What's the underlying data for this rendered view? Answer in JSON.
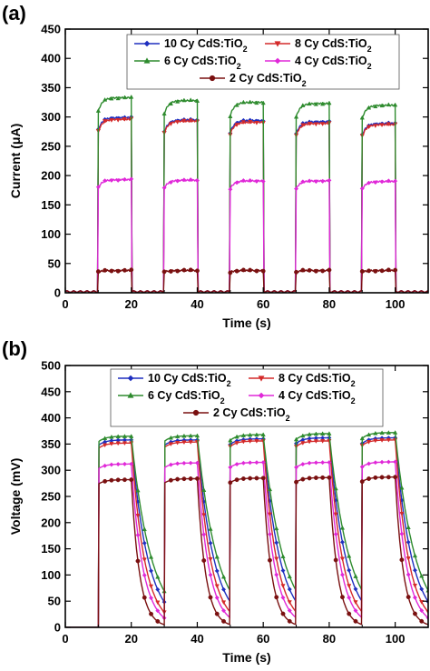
{
  "chart_data": [
    {
      "type": "line",
      "panel_label": "(a)",
      "xlabel": "Time (s)",
      "ylabel": "Current (μA)",
      "xlim": [
        0,
        110
      ],
      "ylim": [
        0,
        450
      ],
      "xticks": [
        0,
        20,
        40,
        60,
        80,
        100
      ],
      "yticks": [
        0,
        50,
        100,
        150,
        200,
        250,
        300,
        350,
        400,
        450
      ],
      "light_on_intervals": [
        [
          10,
          20
        ],
        [
          30,
          40
        ],
        [
          50,
          60
        ],
        [
          70,
          80
        ],
        [
          90,
          100
        ]
      ],
      "legend_position": "top-center",
      "series": [
        {
          "name_main": "10 Cy CdS:TiO",
          "name_sub": "2",
          "color": "#1f2fbf",
          "marker": "diamond",
          "plateau": [
            299,
            295,
            294,
            292,
            289
          ]
        },
        {
          "name_main": "8 Cy CdS:TiO",
          "name_sub": "2",
          "color": "#d42a2a",
          "marker": "triangle-down",
          "plateau": [
            296,
            293,
            291,
            289,
            287
          ]
        },
        {
          "name_main": "6 Cy CdS:TiO",
          "name_sub": "2",
          "color": "#2e8b2e",
          "marker": "triangle-up",
          "plateau": [
            333,
            328,
            325,
            323,
            320
          ]
        },
        {
          "name_main": "4 Cy CdS:TiO",
          "name_sub": "2",
          "color": "#e028d8",
          "marker": "diamond",
          "plateau": [
            193,
            192,
            191,
            191,
            190
          ]
        },
        {
          "name_main": "2 Cy CdS:TiO",
          "name_sub": "2",
          "color": "#7a1010",
          "marker": "circle",
          "plateau": [
            38,
            38,
            38,
            38,
            38
          ]
        }
      ]
    },
    {
      "type": "line",
      "panel_label": "(b)",
      "xlabel": "Time (s)",
      "ylabel": "Voltage (mV)",
      "xlim": [
        0,
        110
      ],
      "ylim": [
        0,
        500
      ],
      "xticks": [
        0,
        20,
        40,
        60,
        80,
        100
      ],
      "yticks": [
        0,
        50,
        100,
        150,
        200,
        250,
        300,
        350,
        400,
        450,
        500
      ],
      "light_on_intervals": [
        [
          10,
          20
        ],
        [
          30,
          40
        ],
        [
          50,
          60
        ],
        [
          70,
          80
        ],
        [
          90,
          100
        ]
      ],
      "legend_position": "top-center",
      "series": [
        {
          "name_main": "10 Cy CdS:TiO",
          "name_sub": "2",
          "color": "#1f2fbf",
          "marker": "diamond",
          "plateau": [
            358,
            358,
            360,
            362,
            362
          ],
          "decay_tau_s": 5.0
        },
        {
          "name_main": "8 Cy CdS:TiO",
          "name_sub": "2",
          "color": "#d42a2a",
          "marker": "triangle-down",
          "plateau": [
            352,
            354,
            356,
            356,
            358
          ],
          "decay_tau_s": 4.0
        },
        {
          "name_main": "6 Cy CdS:TiO",
          "name_sub": "2",
          "color": "#2e8b2e",
          "marker": "triangle-up",
          "plateau": [
            365,
            366,
            368,
            370,
            372
          ],
          "decay_tau_s": 6.0
        },
        {
          "name_main": "4 Cy CdS:TiO",
          "name_sub": "2",
          "color": "#e028d8",
          "marker": "diamond",
          "plateau": [
            312,
            314,
            315,
            315,
            316
          ],
          "decay_tau_s": 3.5
        },
        {
          "name_main": "2 Cy CdS:TiO",
          "name_sub": "2",
          "color": "#7a1010",
          "marker": "circle",
          "plateau": [
            282,
            284,
            285,
            286,
            287
          ],
          "decay_tau_s": 2.5
        }
      ]
    }
  ]
}
